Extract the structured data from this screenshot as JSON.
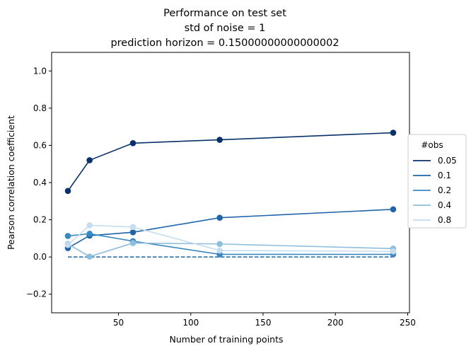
{
  "chart_data": {
    "type": "line",
    "title": [
      "Performance on test set",
      "std of noise = 1",
      "prediction horizon = 0.15000000000000002"
    ],
    "xlabel": "Number of training points",
    "ylabel": "Pearson correlation coefficient",
    "xlim": [
      3.75,
      251.25
    ],
    "ylim": [
      -0.3,
      1.1
    ],
    "xticks": [
      50,
      100,
      150,
      200,
      250
    ],
    "yticks": [
      -0.2,
      0.0,
      0.2,
      0.4,
      0.6,
      0.8,
      1.0
    ],
    "ytick_labels": [
      "−0.2",
      "0.0",
      "0.2",
      "0.4",
      "0.6",
      "0.8",
      "1.0"
    ],
    "grid": false,
    "legend": {
      "title": "#obs",
      "placement": "center-right-outside"
    },
    "x": [
      15,
      30,
      60,
      120,
      240
    ],
    "series": [
      {
        "name": "0.05",
        "color": "#08306b",
        "values": [
          0.355,
          0.52,
          0.612,
          0.63,
          0.668
        ]
      },
      {
        "name": "0.1",
        "color": "#1f65aa",
        "values": [
          0.048,
          0.115,
          0.133,
          0.211,
          0.256
        ]
      },
      {
        "name": "0.2",
        "color": "#3a89c3",
        "values": [
          0.113,
          0.125,
          0.085,
          0.014,
          0.014
        ]
      },
      {
        "name": "0.4",
        "color": "#8ebedc",
        "values": [
          0.07,
          0.002,
          0.075,
          0.07,
          0.045
        ]
      },
      {
        "name": "0.8",
        "color": "#c6dcef",
        "values": [
          0.065,
          0.17,
          0.161,
          0.035,
          0.03
        ]
      }
    ],
    "baseline": {
      "y": 0.0,
      "x_range": [
        15,
        240
      ],
      "color": "#1f65aa",
      "style": "dashed"
    }
  }
}
